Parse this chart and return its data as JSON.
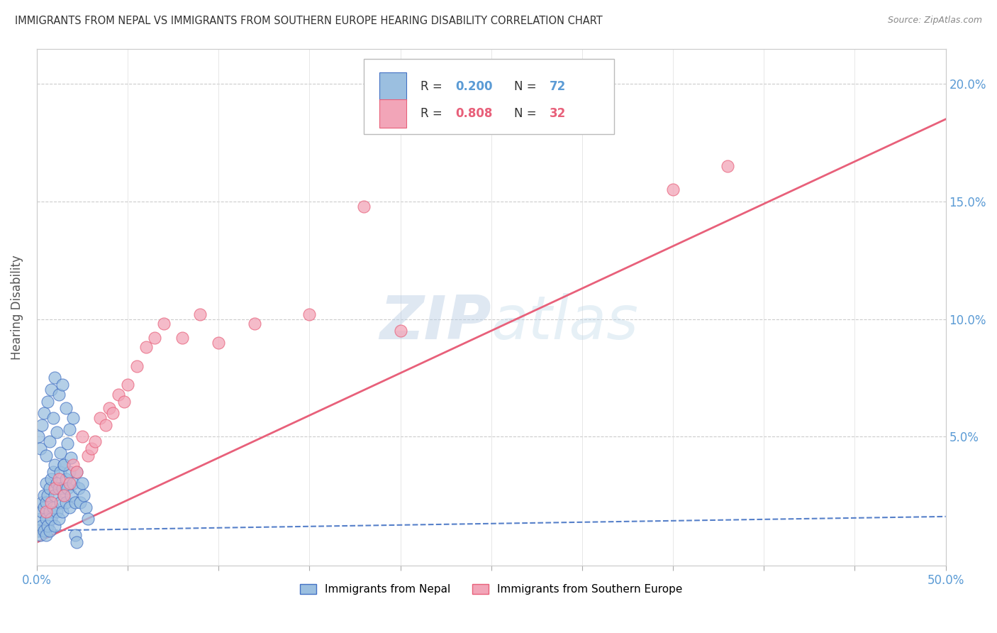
{
  "title": "IMMIGRANTS FROM NEPAL VS IMMIGRANTS FROM SOUTHERN EUROPE HEARING DISABILITY CORRELATION CHART",
  "source": "Source: ZipAtlas.com",
  "ylabel": "Hearing Disability",
  "xlabel": "",
  "xlim": [
    0.0,
    0.5
  ],
  "ylim": [
    -0.005,
    0.215
  ],
  "xticks": [
    0.0,
    0.05,
    0.1,
    0.15,
    0.2,
    0.25,
    0.3,
    0.35,
    0.4,
    0.45,
    0.5
  ],
  "xticklabels_show": [
    "0.0%",
    "50.0%"
  ],
  "yticks": [
    0.0,
    0.05,
    0.1,
    0.15,
    0.2
  ],
  "yticklabels_right": [
    "",
    "5.0%",
    "10.0%",
    "15.0%",
    "20.0%"
  ],
  "legend_r1": "R = 0.200",
  "legend_n1": "N = 72",
  "legend_r2": "R = 0.808",
  "legend_n2": "N = 32",
  "color_nepal": "#9BBFE0",
  "color_seurope": "#F2A5B8",
  "color_nepal_line": "#4472C4",
  "color_seurope_line": "#E8607A",
  "watermark_text": "ZIPatlas",
  "nepal_x": [
    0.001,
    0.002,
    0.002,
    0.003,
    0.003,
    0.003,
    0.004,
    0.004,
    0.004,
    0.005,
    0.005,
    0.005,
    0.005,
    0.006,
    0.006,
    0.007,
    0.007,
    0.007,
    0.008,
    0.008,
    0.009,
    0.009,
    0.01,
    0.01,
    0.01,
    0.011,
    0.011,
    0.012,
    0.012,
    0.013,
    0.013,
    0.014,
    0.014,
    0.015,
    0.015,
    0.016,
    0.016,
    0.017,
    0.018,
    0.018,
    0.019,
    0.02,
    0.021,
    0.022,
    0.023,
    0.024,
    0.025,
    0.026,
    0.027,
    0.028,
    0.001,
    0.002,
    0.003,
    0.004,
    0.005,
    0.006,
    0.007,
    0.008,
    0.009,
    0.01,
    0.011,
    0.012,
    0.013,
    0.014,
    0.015,
    0.016,
    0.017,
    0.018,
    0.019,
    0.02,
    0.021,
    0.022
  ],
  "nepal_y": [
    0.01,
    0.008,
    0.015,
    0.012,
    0.018,
    0.022,
    0.01,
    0.02,
    0.025,
    0.008,
    0.015,
    0.022,
    0.03,
    0.012,
    0.025,
    0.01,
    0.018,
    0.028,
    0.015,
    0.032,
    0.02,
    0.035,
    0.012,
    0.025,
    0.038,
    0.018,
    0.03,
    0.015,
    0.028,
    0.022,
    0.035,
    0.018,
    0.028,
    0.025,
    0.038,
    0.022,
    0.032,
    0.028,
    0.02,
    0.035,
    0.025,
    0.03,
    0.022,
    0.035,
    0.028,
    0.022,
    0.03,
    0.025,
    0.02,
    0.015,
    0.05,
    0.045,
    0.055,
    0.06,
    0.042,
    0.065,
    0.048,
    0.07,
    0.058,
    0.075,
    0.052,
    0.068,
    0.043,
    0.072,
    0.038,
    0.062,
    0.047,
    0.053,
    0.041,
    0.058,
    0.008,
    0.005
  ],
  "seurope_x": [
    0.005,
    0.008,
    0.01,
    0.012,
    0.015,
    0.018,
    0.02,
    0.022,
    0.025,
    0.028,
    0.03,
    0.032,
    0.035,
    0.038,
    0.04,
    0.042,
    0.045,
    0.048,
    0.05,
    0.055,
    0.06,
    0.065,
    0.07,
    0.08,
    0.09,
    0.1,
    0.12,
    0.15,
    0.18,
    0.2,
    0.35,
    0.38
  ],
  "seurope_y": [
    0.018,
    0.022,
    0.028,
    0.032,
    0.025,
    0.03,
    0.038,
    0.035,
    0.05,
    0.042,
    0.045,
    0.048,
    0.058,
    0.055,
    0.062,
    0.06,
    0.068,
    0.065,
    0.072,
    0.08,
    0.088,
    0.092,
    0.098,
    0.092,
    0.102,
    0.09,
    0.098,
    0.102,
    0.148,
    0.095,
    0.155,
    0.165
  ],
  "nepal_line_slope": 0.012,
  "nepal_line_intercept": 0.01,
  "seurope_line_slope": 0.36,
  "seurope_line_intercept": 0.005
}
